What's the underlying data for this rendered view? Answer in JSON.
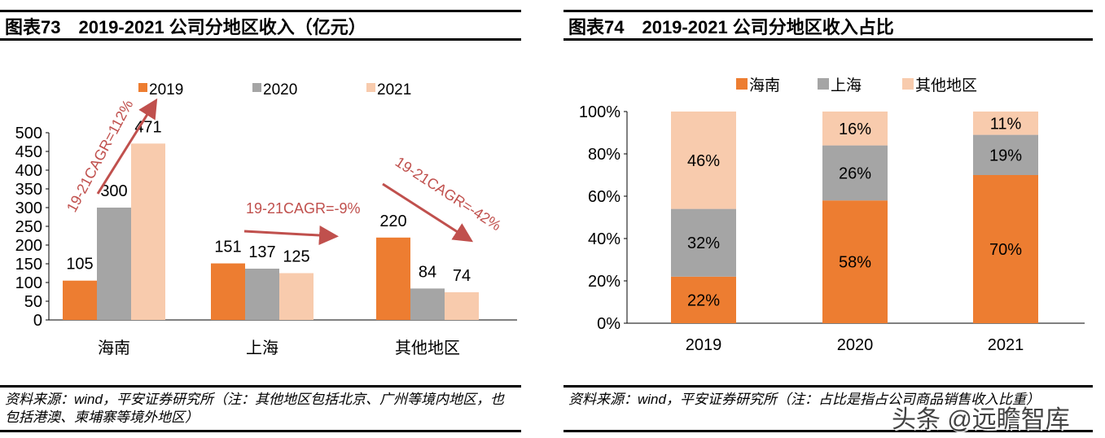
{
  "chart_data": [
    {
      "type": "bar",
      "title": "图表73　2019-2021 公司分地区收入（亿元）",
      "categories": [
        "海南",
        "上海",
        "其他地区"
      ],
      "series": [
        {
          "name": "2019",
          "color": "#ED7D31",
          "values": [
            105,
            151,
            220
          ]
        },
        {
          "name": "2020",
          "color": "#A5A5A5",
          "values": [
            300,
            137,
            84
          ]
        },
        {
          "name": "2021",
          "color": "#F8CBAD",
          "values": [
            471,
            125,
            74
          ]
        }
      ],
      "ylim": [
        0,
        500
      ],
      "yticks": [
        0,
        50,
        100,
        150,
        200,
        250,
        300,
        350,
        400,
        450,
        500
      ],
      "legend": "top",
      "grid": false,
      "annotations": [
        "19-21CAGR=112%",
        "19-21CAGR=-9%",
        "19-21CAGR=-42%"
      ],
      "annotation_color": "#C0504D",
      "source": "资料来源：wind，平安证券研究所（注：其他地区包括北京、广州等境内地区，也包括港澳、柬埔寨等境外地区）"
    },
    {
      "type": "bar",
      "stacked": true,
      "title": "图表74　2019-2021 公司分地区收入占比",
      "categories": [
        "2019",
        "2020",
        "2021"
      ],
      "series": [
        {
          "name": "海南",
          "color": "#ED7D31",
          "values": [
            22,
            58,
            70
          ]
        },
        {
          "name": "上海",
          "color": "#A5A5A5",
          "values": [
            32,
            26,
            19
          ]
        },
        {
          "name": "其他地区",
          "color": "#F8CBAD",
          "values": [
            46,
            16,
            11
          ]
        }
      ],
      "ylim": [
        0,
        100
      ],
      "yticks": [
        "0%",
        "20%",
        "40%",
        "60%",
        "80%",
        "100%"
      ],
      "legend": "top",
      "grid": false,
      "source": "资料来源：wind，平安证券研究所（注：占比是指占公司商品销售收入比重）"
    }
  ],
  "watermark": "头条 @远瞻智库"
}
